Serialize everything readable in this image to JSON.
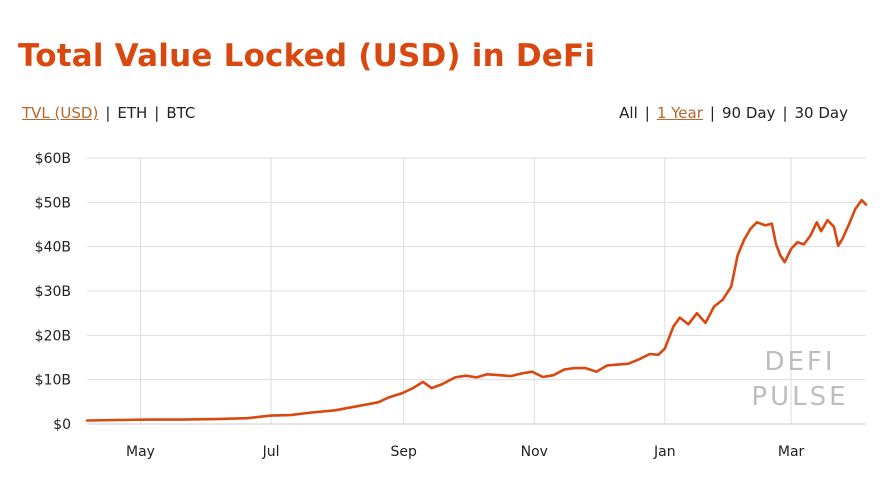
{
  "header": {
    "title": "Total Value Locked (USD) in DeFi"
  },
  "metric_options": [
    {
      "label": "TVL (USD)",
      "active": true
    },
    {
      "label": "ETH",
      "active": false
    },
    {
      "label": "BTC",
      "active": false
    }
  ],
  "range_options": [
    {
      "label": "All",
      "active": false
    },
    {
      "label": "1 Year",
      "active": true
    },
    {
      "label": "90 Day",
      "active": false
    },
    {
      "label": "30 Day",
      "active": false
    }
  ],
  "separator": "|",
  "watermark": [
    "DEFI",
    "PULSE"
  ],
  "colors": {
    "title": "#d9480f",
    "line": "#d9480f",
    "active_option": "#b8662a",
    "grid": "#dddddd",
    "watermark": "#bdbdbd"
  },
  "chart_data": {
    "type": "line",
    "title": "Total Value Locked (USD) in DeFi",
    "xlabel": "",
    "ylabel": "",
    "unit": "USD billions",
    "y_ticks": [
      "$0",
      "$10B",
      "$20B",
      "$30B",
      "$40B",
      "$50B",
      "$60B"
    ],
    "y_tick_values": [
      0,
      10,
      20,
      30,
      40,
      50,
      60
    ],
    "ylim": [
      0,
      60
    ],
    "x_ticks": [
      "May",
      "Jul",
      "Sep",
      "Nov",
      "Jan",
      "Mar"
    ],
    "x_tick_dates": [
      "2020-05-01",
      "2020-07-01",
      "2020-09-01",
      "2020-11-01",
      "2021-01-01",
      "2021-03-01"
    ],
    "xlim": [
      "2020-04-06",
      "2021-04-05"
    ],
    "grid": true,
    "series": [
      {
        "color": "#d9480f",
        "points": [
          [
            "2020-04-06",
            0.8
          ],
          [
            "2020-04-20",
            0.9
          ],
          [
            "2020-05-05",
            1.0
          ],
          [
            "2020-05-20",
            1.0
          ],
          [
            "2020-06-05",
            1.1
          ],
          [
            "2020-06-20",
            1.3
          ],
          [
            "2020-07-01",
            1.9
          ],
          [
            "2020-07-10",
            2.0
          ],
          [
            "2020-07-20",
            2.6
          ],
          [
            "2020-07-31",
            3.1
          ],
          [
            "2020-08-10",
            4.0
          ],
          [
            "2020-08-20",
            4.9
          ],
          [
            "2020-08-25",
            6.0
          ],
          [
            "2020-08-31",
            6.9
          ],
          [
            "2020-09-05",
            8.0
          ],
          [
            "2020-09-10",
            9.5
          ],
          [
            "2020-09-14",
            8.1
          ],
          [
            "2020-09-19",
            9.0
          ],
          [
            "2020-09-25",
            10.5
          ],
          [
            "2020-09-30",
            10.9
          ],
          [
            "2020-10-05",
            10.5
          ],
          [
            "2020-10-10",
            11.2
          ],
          [
            "2020-10-16",
            11.0
          ],
          [
            "2020-10-21",
            10.8
          ],
          [
            "2020-10-26",
            11.4
          ],
          [
            "2020-10-31",
            11.8
          ],
          [
            "2020-11-05",
            10.6
          ],
          [
            "2020-11-10",
            11.0
          ],
          [
            "2020-11-15",
            12.3
          ],
          [
            "2020-11-20",
            12.6
          ],
          [
            "2020-11-25",
            12.6
          ],
          [
            "2020-11-30",
            11.8
          ],
          [
            "2020-12-05",
            13.2
          ],
          [
            "2020-12-10",
            13.4
          ],
          [
            "2020-12-15",
            13.6
          ],
          [
            "2020-12-20",
            14.6
          ],
          [
            "2020-12-25",
            15.8
          ],
          [
            "2020-12-29",
            15.6
          ],
          [
            "2021-01-01",
            17.0
          ],
          [
            "2021-01-05",
            22.0
          ],
          [
            "2021-01-08",
            24.0
          ],
          [
            "2021-01-12",
            22.5
          ],
          [
            "2021-01-16",
            25.0
          ],
          [
            "2021-01-20",
            22.8
          ],
          [
            "2021-01-24",
            26.5
          ],
          [
            "2021-01-28",
            28.0
          ],
          [
            "2021-02-01",
            31.0
          ],
          [
            "2021-02-04",
            38.0
          ],
          [
            "2021-02-07",
            41.5
          ],
          [
            "2021-02-10",
            44.0
          ],
          [
            "2021-02-13",
            45.5
          ],
          [
            "2021-02-17",
            44.8
          ],
          [
            "2021-02-20",
            45.2
          ],
          [
            "2021-02-22",
            40.5
          ],
          [
            "2021-02-24",
            38.0
          ],
          [
            "2021-02-26",
            36.5
          ],
          [
            "2021-03-01",
            39.5
          ],
          [
            "2021-03-04",
            41.0
          ],
          [
            "2021-03-07",
            40.5
          ],
          [
            "2021-03-10",
            42.5
          ],
          [
            "2021-03-13",
            45.5
          ],
          [
            "2021-03-15",
            43.5
          ],
          [
            "2021-03-18",
            46.0
          ],
          [
            "2021-03-21",
            44.5
          ],
          [
            "2021-03-23",
            40.2
          ],
          [
            "2021-03-25",
            41.8
          ],
          [
            "2021-03-28",
            45.0
          ],
          [
            "2021-03-31",
            48.5
          ],
          [
            "2021-04-03",
            50.5
          ],
          [
            "2021-04-05",
            49.5
          ]
        ]
      }
    ]
  }
}
